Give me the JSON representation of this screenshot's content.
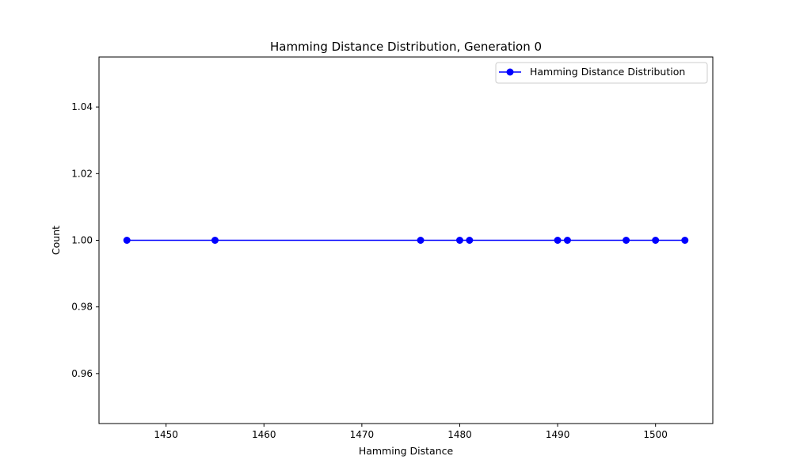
{
  "chart_data": {
    "type": "line",
    "title": "Hamming Distance Distribution, Generation 0",
    "xlabel": "Hamming Distance",
    "ylabel": "Count",
    "xlim": [
      1443.15,
      1505.85
    ],
    "ylim": [
      0.945,
      1.055
    ],
    "xticks": [
      1450,
      1460,
      1470,
      1480,
      1490,
      1500
    ],
    "yticks": [
      0.96,
      0.98,
      1.0,
      1.02,
      1.04
    ],
    "ytick_labels": [
      "0.96",
      "0.98",
      "1.00",
      "1.02",
      "1.04"
    ],
    "grid": false,
    "legend_position": "top-right",
    "series": [
      {
        "name": "Hamming Distance Distribution",
        "color": "#0000ff",
        "marker": "circle",
        "x": [
          1446,
          1455,
          1476,
          1480,
          1481,
          1490,
          1491,
          1497,
          1500,
          1503
        ],
        "y": [
          1,
          1,
          1,
          1,
          1,
          1,
          1,
          1,
          1,
          1
        ]
      }
    ]
  }
}
